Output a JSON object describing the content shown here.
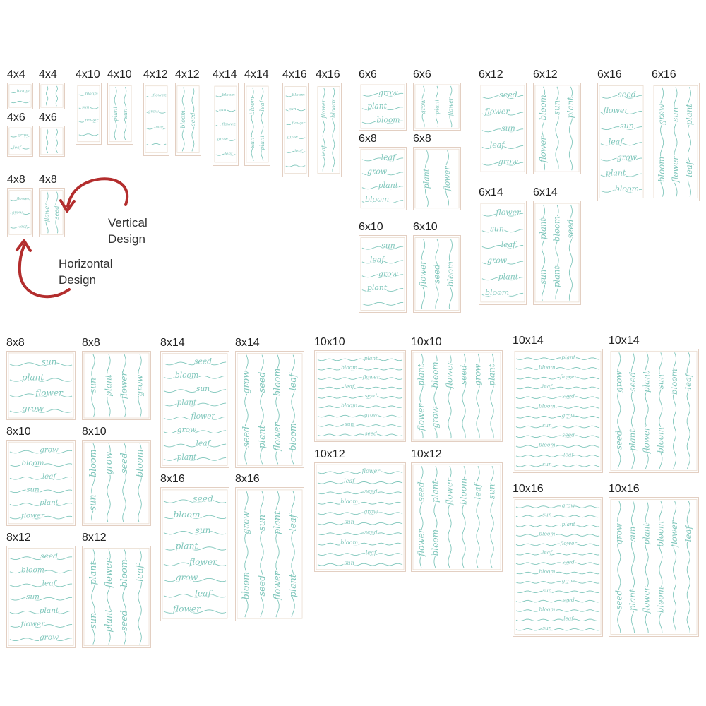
{
  "callouts": {
    "vertical": [
      "Vertical",
      "Design"
    ],
    "horizontal": [
      "Horizontal",
      "Design"
    ]
  },
  "colors": {
    "stitch": "#7fc6bb",
    "hoop_outline": "#e3cfc2",
    "arrow": "#b32d2d"
  },
  "designs": [
    {
      "label": "4x4",
      "orientation": "horizontal",
      "words": [
        "bloom"
      ]
    },
    {
      "label": "4x4",
      "orientation": "vertical",
      "words": []
    },
    {
      "label": "4x6",
      "orientation": "horizontal",
      "words": [
        "grow",
        "leaf"
      ]
    },
    {
      "label": "4x6",
      "orientation": "vertical",
      "words": []
    },
    {
      "label": "4x8",
      "orientation": "horizontal",
      "words": [
        "flower",
        "grow",
        "leaf"
      ]
    },
    {
      "label": "4x8",
      "orientation": "vertical",
      "words": [
        "flower",
        "seed"
      ]
    },
    {
      "label": "4x10",
      "orientation": "horizontal",
      "words": [
        "bloom",
        "sun",
        "flower"
      ]
    },
    {
      "label": "4x10",
      "orientation": "vertical",
      "words": [
        "plant",
        "sun"
      ]
    },
    {
      "label": "4x12",
      "orientation": "horizontal",
      "words": [
        "flower",
        "grow",
        "leaf"
      ]
    },
    {
      "label": "4x12",
      "orientation": "vertical",
      "words": [
        "bloom",
        "seed"
      ]
    },
    {
      "label": "4x14",
      "orientation": "horizontal",
      "words": [
        "bloom",
        "sun",
        "flower",
        "grow",
        "leaf"
      ]
    },
    {
      "label": "4x14",
      "orientation": "vertical",
      "words": [
        "bloom",
        "leaf",
        "sun",
        "plant"
      ]
    },
    {
      "label": "4x16",
      "orientation": "horizontal",
      "words": [
        "bloom",
        "sun",
        "flower",
        "grow",
        "leaf"
      ]
    },
    {
      "label": "4x16",
      "orientation": "vertical",
      "words": [
        "flower",
        "bloom",
        "leaf"
      ]
    },
    {
      "label": "6x6",
      "orientation": "horizontal",
      "words": [
        "grow",
        "plant",
        "bloom"
      ]
    },
    {
      "label": "6x6",
      "orientation": "vertical",
      "words": [
        "grow",
        "plant",
        "flower"
      ]
    },
    {
      "label": "6x8",
      "orientation": "horizontal",
      "words": [
        "leaf",
        "grow",
        "plant",
        "bloom"
      ]
    },
    {
      "label": "6x8",
      "orientation": "vertical",
      "words": [
        "plant",
        "flower"
      ]
    },
    {
      "label": "6x10",
      "orientation": "horizontal",
      "words": [
        "sun",
        "leaf",
        "grow",
        "plant"
      ]
    },
    {
      "label": "6x10",
      "orientation": "vertical",
      "words": [
        "flower",
        "seed",
        "bloom"
      ]
    },
    {
      "label": "6x12",
      "orientation": "horizontal",
      "words": [
        "seed",
        "flower",
        "sun",
        "leaf",
        "grow"
      ]
    },
    {
      "label": "6x12",
      "orientation": "vertical",
      "words": [
        "bloom",
        "sun",
        "plant",
        "flower"
      ]
    },
    {
      "label": "6x14",
      "orientation": "horizontal",
      "words": [
        "flower",
        "sun",
        "leaf",
        "grow",
        "plant",
        "bloom"
      ]
    },
    {
      "label": "6x14",
      "orientation": "vertical",
      "words": [
        "plant",
        "bloom",
        "seed",
        "sun",
        "plant"
      ]
    },
    {
      "label": "6x16",
      "orientation": "horizontal",
      "words": [
        "seed",
        "flower",
        "sun",
        "leaf",
        "grow",
        "plant",
        "bloom"
      ]
    },
    {
      "label": "6x16",
      "orientation": "vertical",
      "words": [
        "grow",
        "sun",
        "plant",
        "bloom",
        "flower",
        "leaf"
      ]
    },
    {
      "label": "8x8",
      "orientation": "horizontal",
      "words": [
        "sun",
        "plant",
        "flower",
        "grow"
      ]
    },
    {
      "label": "8x8",
      "orientation": "vertical",
      "words": [
        "sun",
        "plant",
        "flower",
        "grow"
      ]
    },
    {
      "label": "8x10",
      "orientation": "horizontal",
      "words": [
        "grow",
        "bloom",
        "leaf",
        "sun",
        "plant",
        "flower"
      ]
    },
    {
      "label": "8x10",
      "orientation": "vertical",
      "words": [
        "bloom",
        "grow",
        "seed",
        "bloom",
        "sun"
      ]
    },
    {
      "label": "8x12",
      "orientation": "horizontal",
      "words": [
        "seed",
        "bloom",
        "leaf",
        "sun",
        "plant",
        "flower",
        "grow"
      ]
    },
    {
      "label": "8x12",
      "orientation": "vertical",
      "words": [
        "plant",
        "flower",
        "bloom",
        "leaf",
        "sun",
        "plant",
        "seed"
      ]
    },
    {
      "label": "8x14",
      "orientation": "horizontal",
      "words": [
        "seed",
        "bloom",
        "sun",
        "plant",
        "flower",
        "grow",
        "leaf",
        "plant"
      ]
    },
    {
      "label": "8x14",
      "orientation": "vertical",
      "words": [
        "grow",
        "seed",
        "bloom",
        "leaf",
        "seed",
        "plant",
        "flower",
        "bloom"
      ]
    },
    {
      "label": "8x16",
      "orientation": "horizontal",
      "words": [
        "seed",
        "bloom",
        "sun",
        "plant",
        "flower",
        "grow",
        "leaf",
        "flower"
      ]
    },
    {
      "label": "8x16",
      "orientation": "vertical",
      "words": [
        "grow",
        "sun",
        "plant",
        "leaf",
        "bloom",
        "seed",
        "flower",
        "plant"
      ]
    },
    {
      "label": "10x10",
      "orientation": "horizontal",
      "words": [
        "plant",
        "bloom",
        "flower",
        "leaf",
        "seed",
        "bloom",
        "grow",
        "sun",
        "seed"
      ]
    },
    {
      "label": "10x10",
      "orientation": "vertical",
      "words": [
        "plant",
        "bloom",
        "flower",
        "seed",
        "grow",
        "plant",
        "flower",
        "grow"
      ]
    },
    {
      "label": "10x12",
      "orientation": "horizontal",
      "words": [
        "flower",
        "leaf",
        "seed",
        "bloom",
        "grow",
        "sun",
        "seed",
        "bloom",
        "leaf",
        "sun"
      ]
    },
    {
      "label": "10x12",
      "orientation": "vertical",
      "words": [
        "seed",
        "plant",
        "flower",
        "bloom",
        "leaf",
        "sun",
        "flower",
        "bloom"
      ]
    },
    {
      "label": "10x14",
      "orientation": "horizontal",
      "words": [
        "plant",
        "bloom",
        "flower",
        "leaf",
        "seed",
        "bloom",
        "grow",
        "sun",
        "seed",
        "bloom",
        "leaf",
        "sun"
      ]
    },
    {
      "label": "10x14",
      "orientation": "vertical",
      "words": [
        "grow",
        "seed",
        "plant",
        "sun",
        "bloom",
        "leaf",
        "seed",
        "plant",
        "flower",
        "bloom"
      ]
    },
    {
      "label": "10x16",
      "orientation": "horizontal",
      "words": [
        "grow",
        "sun",
        "plant",
        "bloom",
        "flower",
        "leaf",
        "seed",
        "bloom",
        "grow",
        "sun",
        "seed",
        "bloom",
        "leaf",
        "sun"
      ]
    },
    {
      "label": "10x16",
      "orientation": "vertical",
      "words": [
        "grow",
        "sun",
        "plant",
        "bloom",
        "flower",
        "leaf",
        "seed",
        "plant",
        "flower",
        "bloom"
      ]
    }
  ]
}
